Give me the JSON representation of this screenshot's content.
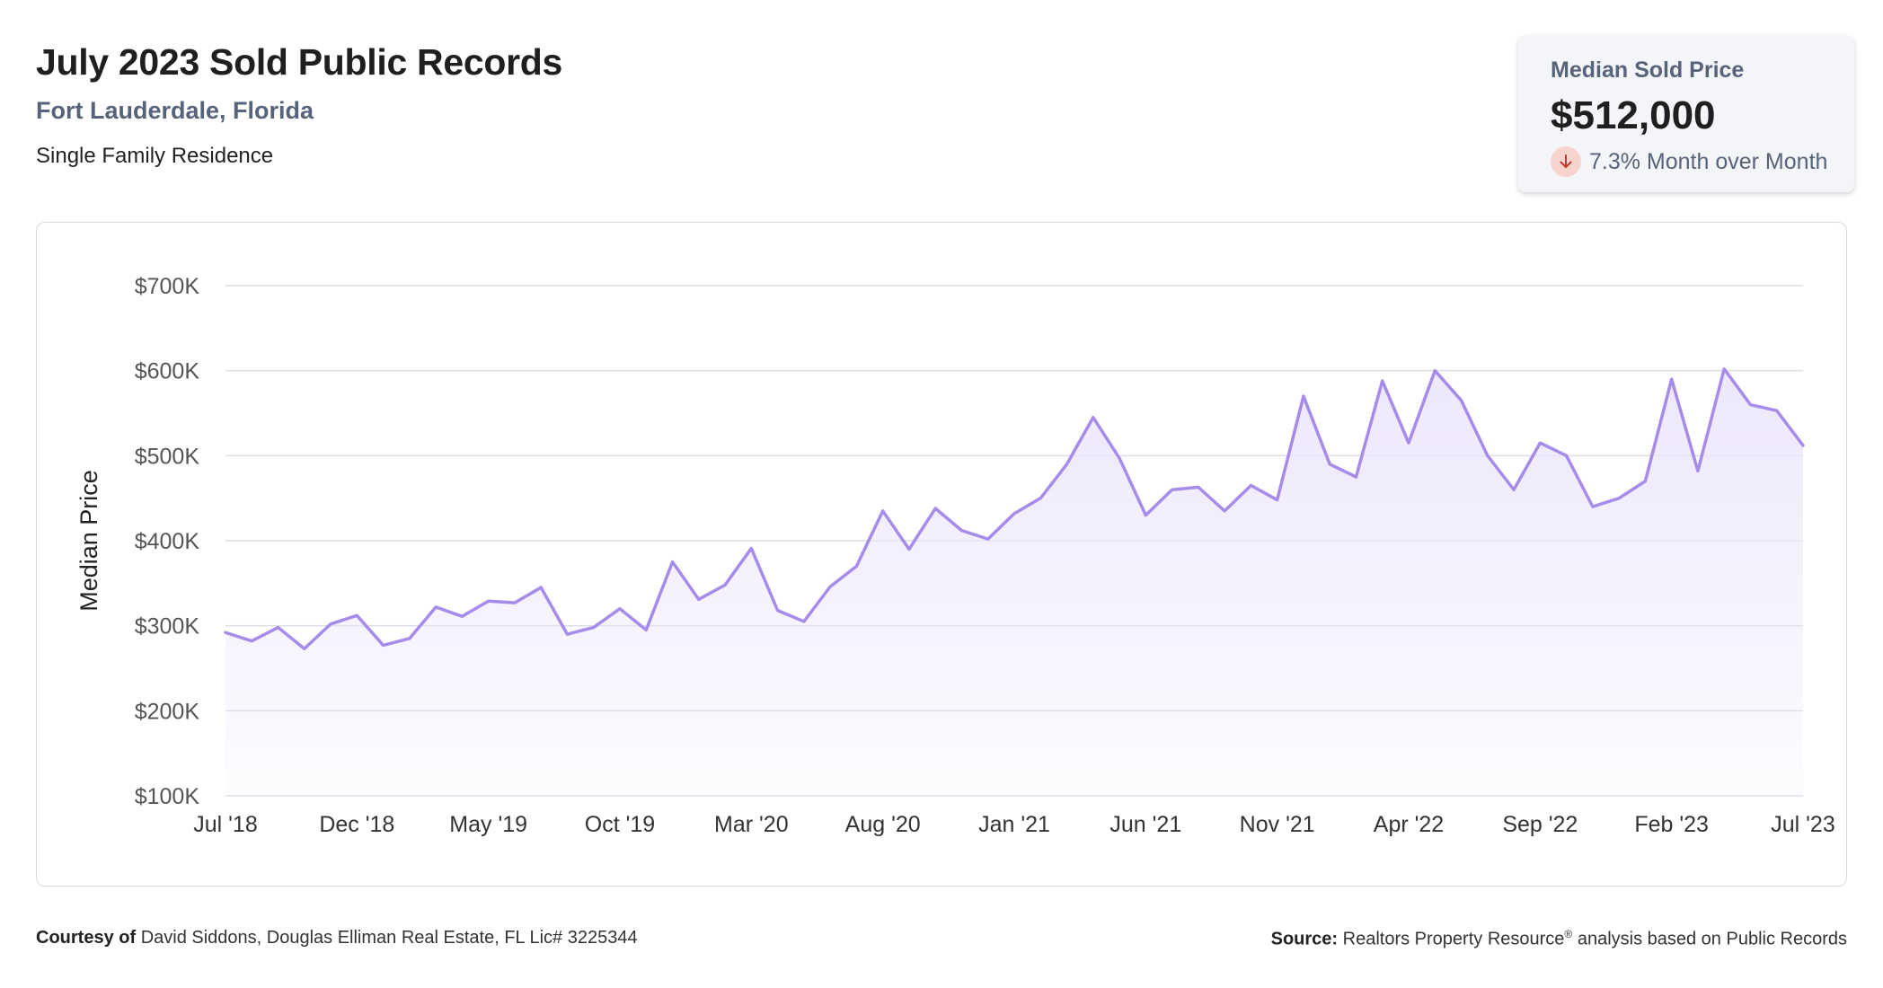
{
  "header": {
    "title": "July 2023 Sold Public Records",
    "location": "Fort Lauderdale, Florida",
    "property_type": "Single Family Residence"
  },
  "stat_card": {
    "label": "Median Sold Price",
    "value": "$512,000",
    "change_text": "7.3% Month over Month",
    "change_direction": "down",
    "icon": "arrow-down-icon",
    "icon_color": "#c0392b",
    "icon_bg": "#f7d3ce"
  },
  "footer": {
    "courtesy_label": "Courtesy of",
    "courtesy_text": "David Siddons, Douglas Elliman Real Estate, FL Lic# 3225344",
    "source_label": "Source:",
    "source_text_before": "Realtors Property Resource",
    "source_mark": "®",
    "source_text_after": " analysis based on Public Records"
  },
  "chart_data": {
    "type": "area",
    "ylabel": "Median Price",
    "xlabel": "",
    "ylim": [
      100000,
      700000
    ],
    "yticks": [
      100000,
      200000,
      300000,
      400000,
      500000,
      600000,
      700000
    ],
    "ytick_labels": [
      "$100K",
      "$200K",
      "$300K",
      "$400K",
      "$500K",
      "$600K",
      "$700K"
    ],
    "xtick_labels": [
      "Jul '18",
      "Dec '18",
      "May '19",
      "Oct '19",
      "Mar '20",
      "Aug '20",
      "Jan '21",
      "Jun '21",
      "Nov '21",
      "Apr '22",
      "Sep '22",
      "Feb '23",
      "Jul '23"
    ],
    "xtick_every": 5,
    "grid": true,
    "line_color": "#a78bea",
    "fill_color": "#ece6fb",
    "x_start": "Jul 2018",
    "x_end": "Jul 2023",
    "series": [
      {
        "values": [
          292000,
          282000,
          298000,
          273000,
          302000,
          312000,
          277000,
          285000,
          322000,
          311000,
          329000,
          327000,
          345000,
          290000,
          298000,
          320000,
          295000,
          375000,
          331000,
          348000,
          391000,
          318000,
          305000,
          346000,
          370000,
          435000,
          390000,
          438000,
          412000,
          402000,
          432000,
          450000,
          490000,
          545000,
          497000,
          430000,
          460000,
          463000,
          435000,
          465000,
          448000,
          570000,
          490000,
          475000,
          588000,
          515000,
          600000,
          565000,
          500000,
          460000,
          515000,
          500000,
          440000,
          450000,
          470000,
          590000,
          482000,
          602000,
          560000,
          553000,
          512000
        ]
      }
    ]
  }
}
